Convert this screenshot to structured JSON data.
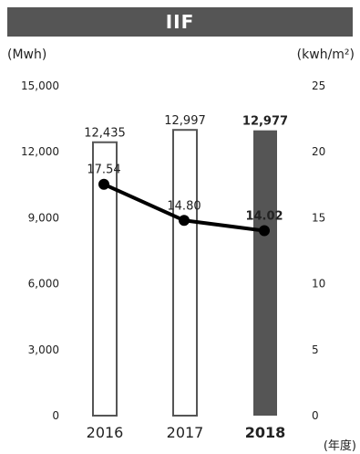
{
  "colors": {
    "title_bg": "#555555",
    "highlight_bar": "#555555",
    "bar_stroke": "#555555",
    "line": "#000000"
  },
  "header": {
    "title": "IIF",
    "left_unit": "(Mwh)",
    "right_unit": "(kwh/m²)",
    "x_unit": "(年度)"
  },
  "chart_data": {
    "type": "bar",
    "categories": [
      "2016",
      "2017",
      "2018"
    ],
    "highlight_index": 2,
    "series": [
      {
        "type": "bar",
        "axis": "left",
        "values": [
          12435,
          12997,
          12977
        ],
        "labels": [
          "12,435",
          "12,997",
          "12,977"
        ]
      },
      {
        "type": "line",
        "axis": "right",
        "values": [
          17.54,
          14.8,
          14.02
        ],
        "labels": [
          "17.54",
          "14.80",
          "14.02"
        ]
      }
    ],
    "ylim_left": [
      0,
      15000
    ],
    "ylim_right": [
      0,
      25
    ],
    "left_ticks": [
      "15,000",
      "12,000",
      "9,000",
      "6,000",
      "3,000",
      "0"
    ],
    "right_ticks": [
      "25",
      "20",
      "15",
      "10",
      "5",
      "0"
    ],
    "grid": false
  }
}
